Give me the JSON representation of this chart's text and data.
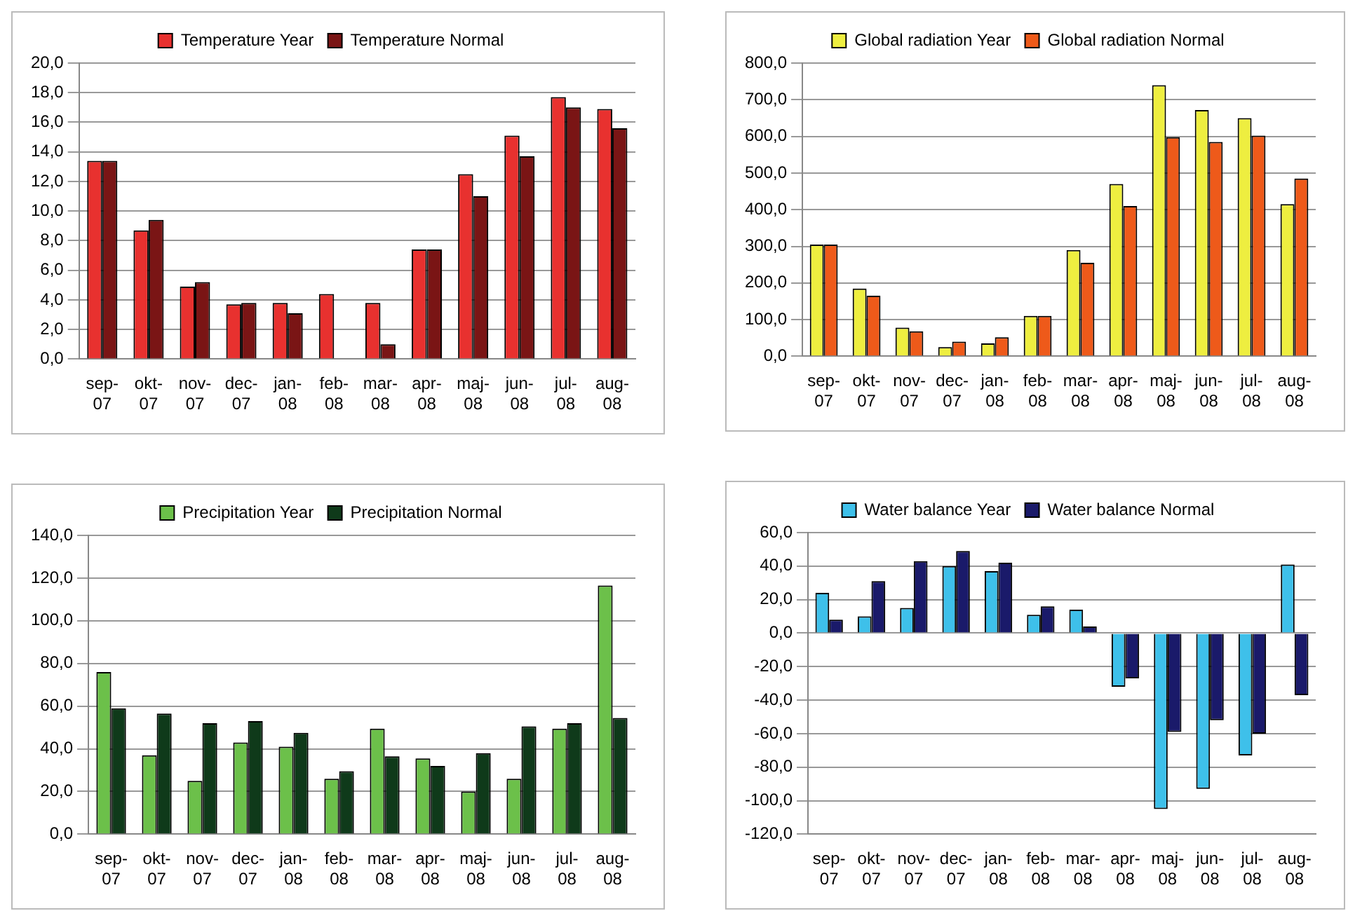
{
  "chart_data": [
    {
      "type": "bar",
      "categories": [
        "sep-07",
        "okt-07",
        "nov-07",
        "dec-07",
        "jan-08",
        "feb-08",
        "mar-08",
        "apr-08",
        "maj-08",
        "jun-08",
        "jul-08",
        "aug-08"
      ],
      "series": [
        {
          "name": "Temperature Year",
          "color": "#e8312f",
          "values": [
            13.4,
            8.7,
            4.9,
            3.7,
            3.8,
            4.4,
            3.8,
            7.4,
            12.5,
            15.1,
            17.7,
            16.9
          ]
        },
        {
          "name": "Temperature Normal",
          "color": "#7a1515",
          "values": [
            13.4,
            9.4,
            5.2,
            3.8,
            3.1,
            0,
            1.0,
            7.4,
            11.0,
            13.7,
            17.0,
            15.6
          ]
        }
      ],
      "ylim": [
        0,
        20
      ],
      "yticks": [
        {
          "value": 0,
          "label": "0,0"
        },
        {
          "value": 2,
          "label": "2,0"
        },
        {
          "value": 4,
          "label": "4,0"
        },
        {
          "value": 6,
          "label": "6,0"
        },
        {
          "value": 8,
          "label": "8,0"
        },
        {
          "value": 10,
          "label": "10,0"
        },
        {
          "value": 12,
          "label": "12,0"
        },
        {
          "value": 14,
          "label": "14,0"
        },
        {
          "value": 16,
          "label": "16,0"
        },
        {
          "value": 18,
          "label": "18,0"
        },
        {
          "value": 20,
          "label": "20,0"
        }
      ],
      "grid": "y",
      "legend": "top"
    },
    {
      "type": "bar",
      "categories": [
        "sep-07",
        "okt-07",
        "nov-07",
        "dec-07",
        "jan-08",
        "feb-08",
        "mar-08",
        "apr-08",
        "maj-08",
        "jun-08",
        "jul-08",
        "aug-08"
      ],
      "series": [
        {
          "name": "Global radiation Year",
          "color": "#eeee40",
          "values": [
            305,
            185,
            78,
            25,
            35,
            110,
            290,
            470,
            740,
            672,
            650,
            415
          ]
        },
        {
          "name": "Global radiation Normal",
          "color": "#ee5a1a",
          "values": [
            305,
            165,
            68,
            40,
            52,
            110,
            255,
            410,
            598,
            585,
            602,
            485
          ]
        }
      ],
      "ylim": [
        0,
        800
      ],
      "yticks": [
        {
          "value": 0,
          "label": "0,0"
        },
        {
          "value": 100,
          "label": "100,0"
        },
        {
          "value": 200,
          "label": "200,0"
        },
        {
          "value": 300,
          "label": "300,0"
        },
        {
          "value": 400,
          "label": "400,0"
        },
        {
          "value": 500,
          "label": "500,0"
        },
        {
          "value": 600,
          "label": "600,0"
        },
        {
          "value": 700,
          "label": "700,0"
        },
        {
          "value": 800,
          "label": "800,0"
        }
      ],
      "grid": "y",
      "legend": "top"
    },
    {
      "type": "bar",
      "categories": [
        "sep-07",
        "okt-07",
        "nov-07",
        "dec-07",
        "jan-08",
        "feb-08",
        "mar-08",
        "apr-08",
        "maj-08",
        "jun-08",
        "jul-08",
        "aug-08"
      ],
      "series": [
        {
          "name": "Precipitation Year",
          "color": "#6cc04a",
          "values": [
            76,
            37,
            25,
            43,
            41,
            26,
            49.5,
            35.5,
            20,
            26,
            49.5,
            116.5
          ]
        },
        {
          "name": "Precipitation Normal",
          "color": "#0f3a1a",
          "values": [
            59,
            56.5,
            52,
            53,
            47.5,
            29.5,
            36.5,
            32,
            38,
            50.5,
            52,
            54.5
          ]
        }
      ],
      "ylim": [
        0,
        140
      ],
      "yticks": [
        {
          "value": 0,
          "label": "0,0"
        },
        {
          "value": 20,
          "label": "20,0"
        },
        {
          "value": 40,
          "label": "40,0"
        },
        {
          "value": 60,
          "label": "60,0"
        },
        {
          "value": 80,
          "label": "80,0"
        },
        {
          "value": 100,
          "label": "100,0"
        },
        {
          "value": 120,
          "label": "120,0"
        },
        {
          "value": 140,
          "label": "140,0"
        }
      ],
      "grid": "y",
      "legend": "top"
    },
    {
      "type": "bar",
      "categories": [
        "sep-07",
        "okt-07",
        "nov-07",
        "dec-07",
        "jan-08",
        "feb-08",
        "mar-08",
        "apr-08",
        "maj-08",
        "jun-08",
        "jul-08",
        "aug-08"
      ],
      "series": [
        {
          "name": "Water balance Year",
          "color": "#3ec0ea",
          "values": [
            24,
            10,
            15,
            40,
            37,
            11,
            14,
            -32,
            -105,
            -93,
            -73,
            41
          ]
        },
        {
          "name": "Water balance Normal",
          "color": "#1a1a6a",
          "values": [
            8,
            31,
            43,
            49,
            42,
            16,
            4,
            -27,
            -59,
            -52,
            -60,
            -37
          ]
        }
      ],
      "ylim": [
        -120,
        60
      ],
      "yticks": [
        {
          "value": -120,
          "label": "-120,0"
        },
        {
          "value": -100,
          "label": "-100,0"
        },
        {
          "value": -80,
          "label": "-80,0"
        },
        {
          "value": -60,
          "label": "-60,0"
        },
        {
          "value": -40,
          "label": "-40,0"
        },
        {
          "value": -20,
          "label": "-20,0"
        },
        {
          "value": 0,
          "label": "0,0"
        },
        {
          "value": 20,
          "label": "20,0"
        },
        {
          "value": 40,
          "label": "40,0"
        },
        {
          "value": 60,
          "label": "60,0"
        }
      ],
      "grid": "y",
      "legend": "top"
    }
  ]
}
